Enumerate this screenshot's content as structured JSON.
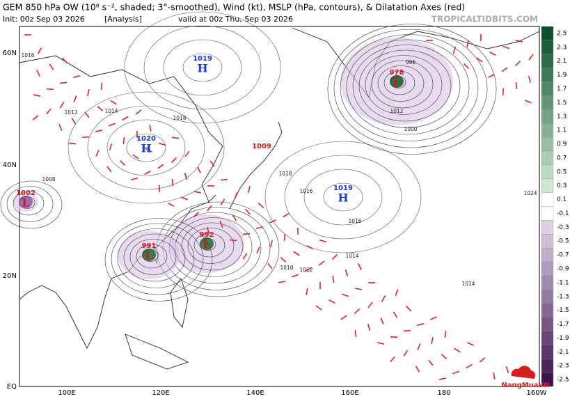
{
  "header": {
    "title": "GEM 850 hPa OW (10⁸ s⁻², shaded; 3°-smoothed), Wind (kt), MSLP (hPa, contours), & Dilatation Axes (red)",
    "init": "Init: 00z Sep 03 2026",
    "run": "[Analysis]",
    "valid": "valid at 00z Thu, Sep 03 2026",
    "watermark": "TROPICALTIDBITS.COM"
  },
  "map": {
    "lat_labels": [
      "60N",
      "40N",
      "20N",
      "EQ"
    ],
    "lon_labels": [
      "100E",
      "120E",
      "140E",
      "160E",
      "180",
      "160W"
    ],
    "centers": [
      {
        "symbol": "H",
        "pressure": "1019"
      },
      {
        "symbol": "H",
        "pressure": "1020"
      },
      {
        "symbol": "L",
        "pressure": "1002"
      },
      {
        "symbol": "L",
        "pressure": "991"
      },
      {
        "symbol": "L",
        "pressure": "992"
      },
      {
        "symbol": "L",
        "pressure": "978"
      },
      {
        "symbol": "H",
        "pressure": "1019"
      }
    ],
    "center_extra": "1009",
    "isobar_labels": [
      "1016",
      "1012",
      "1014",
      "1018",
      "1016",
      "1008",
      "1010",
      "1012",
      "1014",
      "1016",
      "1018",
      "1012",
      "1000",
      "996",
      "1024",
      "1014"
    ]
  },
  "colorbar": {
    "ticks": [
      2.5,
      2.3,
      2.1,
      1.9,
      1.7,
      1.5,
      1.3,
      1.1,
      0.9,
      0.7,
      0.5,
      0.3,
      0.1,
      -0.1,
      -0.3,
      -0.5,
      -0.7,
      -0.9,
      -1.1,
      -1.3,
      -1.5,
      -1.7,
      -1.9,
      -2.1,
      -2.3,
      -2.5
    ]
  },
  "brand": "NangMuaVN"
}
